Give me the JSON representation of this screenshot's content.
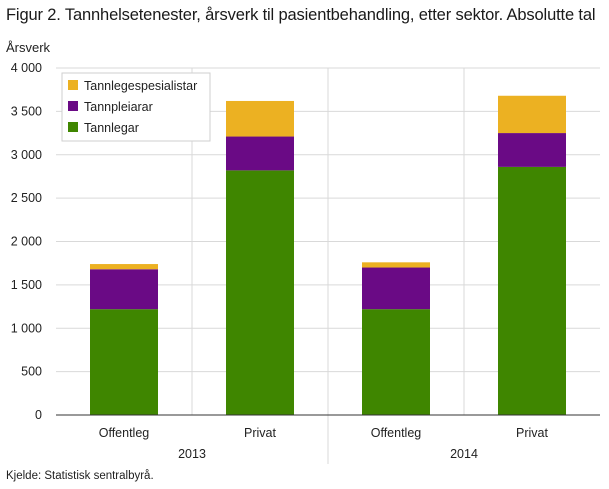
{
  "title": "Figur 2. Tannhelsetenester, årsverk til pasientbehandling, etter sektor. Absolutte tal",
  "source": "Kjelde: Statistisk sentralbyrå.",
  "chart_data": {
    "type": "bar",
    "stacked": true,
    "ylabel": "Årsverk",
    "xlabel": "",
    "ylim": [
      0,
      4000
    ],
    "yticks": [
      0,
      500,
      1000,
      1500,
      2000,
      2500,
      3000,
      3500,
      4000
    ],
    "ytick_labels": [
      "0",
      "500",
      "1 000",
      "1 500",
      "2 000",
      "2 500",
      "3 000",
      "3 500",
      "4 000"
    ],
    "grid": true,
    "legend_position": "top-left",
    "groups": [
      {
        "label": "2013",
        "categories": [
          "Offentleg",
          "Privat"
        ]
      },
      {
        "label": "2014",
        "categories": [
          "Offentleg",
          "Privat"
        ]
      }
    ],
    "categories": [
      "Offentleg",
      "Privat",
      "Offentleg",
      "Privat"
    ],
    "series": [
      {
        "name": "Tannlegar",
        "color": "#3f8600",
        "values": [
          1220,
          2820,
          1220,
          2860
        ]
      },
      {
        "name": "Tannpleiarar",
        "color": "#6a0a85",
        "values": [
          460,
          390,
          480,
          390
        ]
      },
      {
        "name": "Tannlegespesialistar",
        "color": "#ecb122",
        "values": [
          60,
          410,
          60,
          430
        ]
      }
    ]
  }
}
